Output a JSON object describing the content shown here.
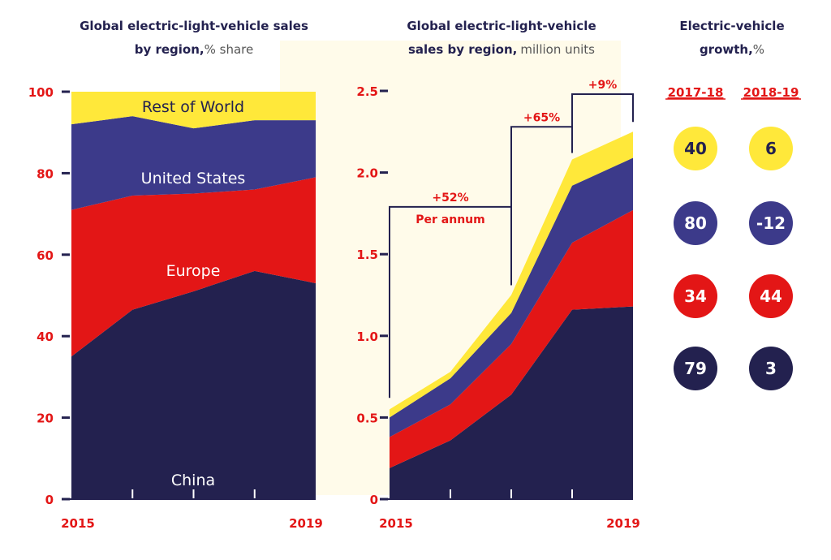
{
  "colors": {
    "china": "#23214f",
    "us": "#3c3a8a",
    "europe": "#e31616",
    "rest_of_world": "#ffe83a",
    "axis": "#23214f",
    "accent": "#e31616"
  },
  "chart_data": [
    {
      "type": "area",
      "stacked": true,
      "title": "Global electric-light-vehicle sales by region,",
      "title_bold": "Global electric-light-vehicle sales",
      "title_line2_bold": "by region,",
      "title_line2_light": "% share",
      "x": [
        2015,
        2016,
        2017,
        2018,
        2019
      ],
      "x_tick_labels": [
        "2015",
        "2019"
      ],
      "ylim": [
        0,
        100
      ],
      "y_ticks": [
        "0",
        "20",
        "40",
        "60",
        "80",
        "100"
      ],
      "series": [
        {
          "name": "China",
          "values": [
            35,
            46.5,
            51,
            56,
            53
          ]
        },
        {
          "name": "Europe",
          "values": [
            36,
            28,
            24,
            20,
            26
          ]
        },
        {
          "name": "United States",
          "values": [
            21,
            19.5,
            16,
            17,
            14
          ]
        },
        {
          "name": "Rest of World",
          "values": [
            8,
            6,
            9,
            7,
            7
          ]
        }
      ]
    },
    {
      "type": "area",
      "stacked": true,
      "title_bold": "Global electric-light-vehicle",
      "title_line2_bold": "sales by region,",
      "title_line2_light": "million units",
      "x": [
        2015,
        2016,
        2017,
        2018,
        2019
      ],
      "x_tick_labels": [
        "2015",
        "2019"
      ],
      "ylim": [
        0,
        2.5
      ],
      "y_ticks": [
        "0",
        "0.5",
        "1.0",
        "1.5",
        "2.0",
        "2.5"
      ],
      "series": [
        {
          "values": [
            0.19,
            0.36,
            0.64,
            1.16,
            1.18
          ]
        },
        {
          "values": [
            0.19,
            0.22,
            0.31,
            0.41,
            0.59
          ]
        },
        {
          "values": [
            0.12,
            0.16,
            0.19,
            0.35,
            0.32
          ]
        },
        {
          "values": [
            0.05,
            0.04,
            0.11,
            0.16,
            0.16
          ]
        }
      ],
      "annotations": [
        {
          "label": "+52%",
          "label2": "Per annum",
          "from": 2015,
          "to": 2017
        },
        {
          "label": "+65%",
          "from": 2017,
          "to": 2018
        },
        {
          "label": "+9%",
          "from": 2018,
          "to": 2019
        }
      ]
    }
  ],
  "growth": {
    "title_bold": "Electric-vehicle",
    "title_line2_bold": "growth,",
    "title_line2_light": "%",
    "columns": [
      "2017-18",
      "2018-19"
    ],
    "rows": [
      {
        "region": "rest_of_world",
        "values": [
          "40",
          "6"
        ]
      },
      {
        "region": "us",
        "values": [
          "80",
          "-12"
        ]
      },
      {
        "region": "europe",
        "values": [
          "34",
          "44"
        ]
      },
      {
        "region": "china",
        "values": [
          "79",
          "3"
        ]
      }
    ]
  }
}
